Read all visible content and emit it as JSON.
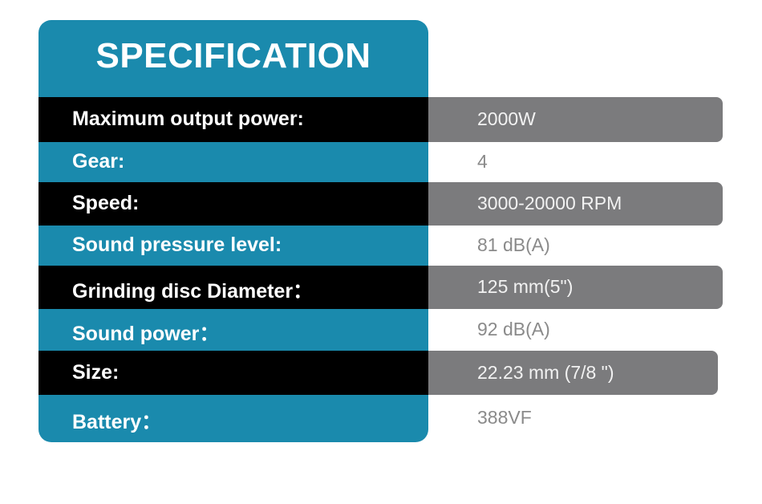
{
  "header": {
    "title": "SPECIFICATION"
  },
  "table": {
    "rows": [
      [
        "Maximum output power:",
        "2000W"
      ],
      [
        "Gear:",
        "4"
      ],
      [
        "Speed:",
        "3000-20000 RPM"
      ],
      [
        "Sound pressure level:",
        "81 dB(A)"
      ],
      [
        "Grinding disc Diameter：",
        "125 mm(5\")"
      ],
      [
        "Sound power：",
        "92 dB(A)"
      ],
      [
        "Size:",
        "22.23 mm (7/8 \")"
      ],
      [
        "Battery：",
        "388VF"
      ]
    ]
  }
}
